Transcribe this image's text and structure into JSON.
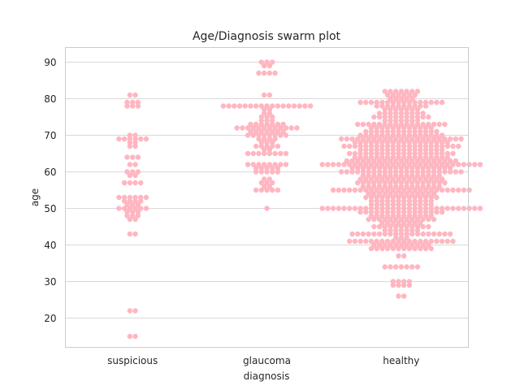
{
  "chart_data": {
    "type": "scatter",
    "subtype": "swarm",
    "title": "Age/Diagnosis swarm plot",
    "xlabel": "diagnosis",
    "ylabel": "age",
    "categories": [
      "suspicious",
      "glaucoma",
      "healthy"
    ],
    "ylim": [
      12,
      94
    ],
    "yticks": [
      20,
      30,
      40,
      50,
      60,
      70,
      80,
      90
    ],
    "grid": true,
    "point_color": "#FFB6C1",
    "series": [
      {
        "category": "suspicious",
        "values": [
          15,
          15,
          22,
          22,
          43,
          43,
          47,
          47,
          48,
          48,
          48,
          49,
          49,
          49,
          50,
          50,
          50,
          50,
          50,
          50,
          51,
          51,
          51,
          52,
          52,
          52,
          52,
          53,
          53,
          53,
          53,
          53,
          53,
          57,
          57,
          57,
          57,
          59,
          59,
          60,
          60,
          60,
          62,
          62,
          64,
          64,
          64,
          67,
          67,
          68,
          68,
          69,
          69,
          69,
          69,
          69,
          69,
          70,
          70,
          78,
          78,
          78,
          79,
          79,
          79,
          81,
          81
        ]
      },
      {
        "category": "glaucoma",
        "values": [
          50,
          55,
          55,
          55,
          55,
          55,
          56,
          56,
          57,
          57,
          57,
          58,
          58,
          60,
          60,
          60,
          60,
          60,
          61,
          61,
          61,
          61,
          61,
          62,
          62,
          62,
          62,
          62,
          62,
          62,
          62,
          65,
          65,
          65,
          65,
          65,
          65,
          65,
          65,
          66,
          66,
          67,
          67,
          67,
          67,
          67,
          68,
          68,
          68,
          69,
          69,
          69,
          69,
          70,
          70,
          70,
          70,
          70,
          70,
          70,
          70,
          71,
          71,
          71,
          71,
          71,
          71,
          71,
          72,
          72,
          72,
          72,
          72,
          72,
          72,
          72,
          72,
          72,
          72,
          72,
          73,
          73,
          73,
          73,
          73,
          73,
          73,
          74,
          74,
          74,
          75,
          75,
          75,
          76,
          76,
          77,
          77,
          78,
          78,
          78,
          78,
          78,
          78,
          78,
          78,
          78,
          78,
          78,
          78,
          78,
          78,
          78,
          78,
          78,
          81,
          81,
          87,
          87,
          87,
          87,
          89,
          89,
          90,
          90,
          90
        ]
      },
      {
        "category": "healthy",
        "values": [
          26,
          26,
          29,
          29,
          29,
          29,
          30,
          30,
          30,
          30,
          34,
          34,
          34,
          34,
          34,
          34,
          34,
          37,
          37,
          39,
          39,
          39,
          39,
          39,
          39,
          39,
          39,
          39,
          39,
          39,
          39,
          40,
          40,
          40,
          40,
          40,
          40,
          40,
          40,
          40,
          40,
          40,
          41,
          41,
          41,
          41,
          41,
          41,
          41,
          41,
          41,
          41,
          41,
          41,
          41,
          41,
          41,
          41,
          41,
          41,
          41,
          41,
          42,
          42,
          42,
          43,
          43,
          43,
          43,
          43,
          43,
          43,
          43,
          43,
          43,
          43,
          43,
          43,
          43,
          43,
          43,
          43,
          43,
          43,
          44,
          44,
          44,
          44,
          44,
          44,
          44,
          45,
          45,
          45,
          45,
          45,
          45,
          45,
          45,
          45,
          45,
          45,
          46,
          46,
          46,
          46,
          46,
          46,
          46,
          46,
          47,
          47,
          47,
          47,
          47,
          47,
          47,
          47,
          47,
          47,
          47,
          47,
          47,
          48,
          48,
          48,
          48,
          48,
          48,
          48,
          48,
          48,
          48,
          48,
          48,
          49,
          49,
          49,
          49,
          49,
          49,
          49,
          49,
          49,
          49,
          49,
          49,
          49,
          49,
          49,
          49,
          50,
          50,
          50,
          50,
          50,
          50,
          50,
          50,
          50,
          50,
          50,
          50,
          50,
          50,
          50,
          50,
          50,
          50,
          50,
          50,
          50,
          50,
          50,
          50,
          50,
          50,
          50,
          50,
          50,
          50,
          51,
          51,
          51,
          51,
          51,
          51,
          51,
          51,
          51,
          51,
          51,
          51,
          52,
          52,
          52,
          52,
          52,
          52,
          52,
          52,
          52,
          52,
          52,
          52,
          53,
          53,
          53,
          53,
          53,
          53,
          53,
          53,
          53,
          53,
          53,
          53,
          53,
          53,
          54,
          54,
          54,
          54,
          54,
          54,
          54,
          54,
          54,
          54,
          54,
          54,
          54,
          55,
          55,
          55,
          55,
          55,
          55,
          55,
          55,
          55,
          55,
          55,
          55,
          55,
          55,
          55,
          55,
          55,
          55,
          55,
          55,
          55,
          55,
          55,
          55,
          55,
          55,
          56,
          56,
          56,
          56,
          56,
          56,
          56,
          56,
          56,
          56,
          56,
          56,
          56,
          56,
          56,
          57,
          57,
          57,
          57,
          57,
          57,
          57,
          57,
          57,
          57,
          57,
          57,
          57,
          57,
          57,
          57,
          57,
          58,
          58,
          58,
          58,
          58,
          58,
          58,
          58,
          58,
          58,
          58,
          58,
          58,
          58,
          58,
          58,
          59,
          59,
          59,
          59,
          59,
          59,
          59,
          59,
          59,
          59,
          59,
          59,
          59,
          59,
          59,
          60,
          60,
          60,
          60,
          60,
          60,
          60,
          60,
          60,
          60,
          60,
          60,
          60,
          60,
          60,
          60,
          60,
          60,
          60,
          60,
          60,
          60,
          60,
          61,
          61,
          61,
          61,
          61,
          61,
          61,
          61,
          61,
          61,
          61,
          61,
          61,
          61,
          61,
          61,
          61,
          61,
          61,
          62,
          62,
          62,
          62,
          62,
          62,
          62,
          62,
          62,
          62,
          62,
          62,
          62,
          62,
          62,
          62,
          62,
          62,
          62,
          62,
          62,
          62,
          62,
          62,
          62,
          62,
          62,
          62,
          62,
          62,
          63,
          63,
          63,
          63,
          63,
          63,
          63,
          63,
          63,
          63,
          63,
          63,
          63,
          63,
          63,
          63,
          63,
          63,
          63,
          63,
          63,
          64,
          64,
          64,
          64,
          64,
          64,
          64,
          64,
          64,
          64,
          64,
          64,
          64,
          64,
          64,
          64,
          64,
          64,
          65,
          65,
          65,
          65,
          65,
          65,
          65,
          65,
          65,
          65,
          65,
          65,
          65,
          65,
          65,
          65,
          65,
          65,
          65,
          65,
          66,
          66,
          66,
          66,
          66,
          66,
          66,
          66,
          66,
          66,
          66,
          66,
          66,
          66,
          66,
          66,
          67,
          67,
          67,
          67,
          67,
          67,
          67,
          67,
          67,
          67,
          67,
          67,
          67,
          67,
          67,
          67,
          67,
          67,
          67,
          67,
          67,
          67,
          68,
          68,
          68,
          68,
          68,
          68,
          68,
          68,
          68,
          68,
          68,
          68,
          68,
          68,
          68,
          68,
          68,
          68,
          69,
          69,
          69,
          69,
          69,
          69,
          69,
          69,
          69,
          69,
          69,
          69,
          69,
          69,
          69,
          69,
          69,
          69,
          69,
          69,
          69,
          69,
          69,
          70,
          70,
          70,
          70,
          70,
          70,
          70,
          70,
          70,
          70,
          70,
          70,
          70,
          70,
          70,
          70,
          71,
          71,
          71,
          71,
          71,
          71,
          71,
          71,
          71,
          71,
          71,
          71,
          71,
          71,
          72,
          72,
          72,
          72,
          72,
          72,
          72,
          72,
          72,
          72,
          72,
          72,
          73,
          73,
          73,
          73,
          73,
          73,
          73,
          73,
          73,
          73,
          73,
          73,
          73,
          73,
          73,
          73,
          73,
          74,
          74,
          74,
          74,
          74,
          74,
          74,
          75,
          75,
          75,
          75,
          75,
          75,
          75,
          75,
          75,
          75,
          75,
          76,
          76,
          76,
          76,
          76,
          76,
          76,
          76,
          76,
          77,
          77,
          77,
          77,
          77,
          77,
          77,
          78,
          78,
          78,
          78,
          78,
          78,
          78,
          78,
          78,
          78,
          79,
          79,
          79,
          79,
          79,
          79,
          79,
          79,
          79,
          79,
          79,
          79,
          79,
          79,
          79,
          79,
          80,
          80,
          80,
          80,
          80,
          81,
          81,
          81,
          81,
          81,
          81,
          82,
          82,
          82,
          82,
          82,
          82,
          82
        ]
      }
    ]
  }
}
